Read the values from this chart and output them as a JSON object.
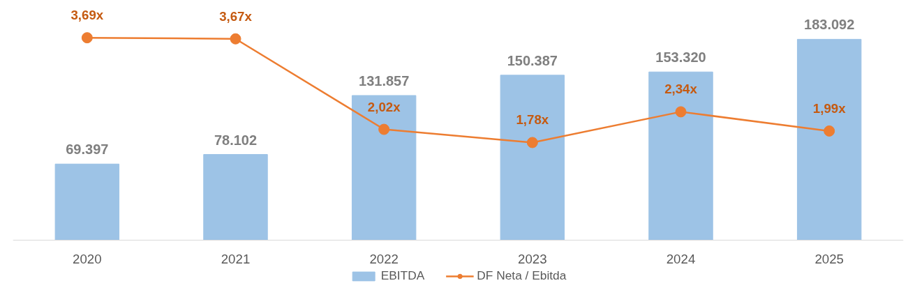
{
  "chart_data": {
    "type": "bar",
    "categories": [
      "2020",
      "2021",
      "2022",
      "2023",
      "2024",
      "2025"
    ],
    "series": [
      {
        "name": "EBITDA",
        "color": "#9dc3e6",
        "values": [
          69397,
          78102,
          131857,
          150387,
          153320,
          183092
        ],
        "value_labels": [
          "69.397",
          "78.102",
          "131.857",
          "150.387",
          "153.320",
          "183.092"
        ]
      },
      {
        "name": "DF Neta / Ebitda",
        "type": "line",
        "axis": "y2",
        "color": "#ed7d31",
        "marker": "circle",
        "line_style": "solid",
        "values": [
          3.69,
          3.67,
          2.02,
          1.78,
          2.34,
          1.99
        ],
        "value_labels": [
          "3,69x",
          "3,67x",
          "2,02x",
          "1,78x",
          "2,34x",
          "1,99x"
        ]
      }
    ],
    "legend": "bottom",
    "grid": false
  }
}
